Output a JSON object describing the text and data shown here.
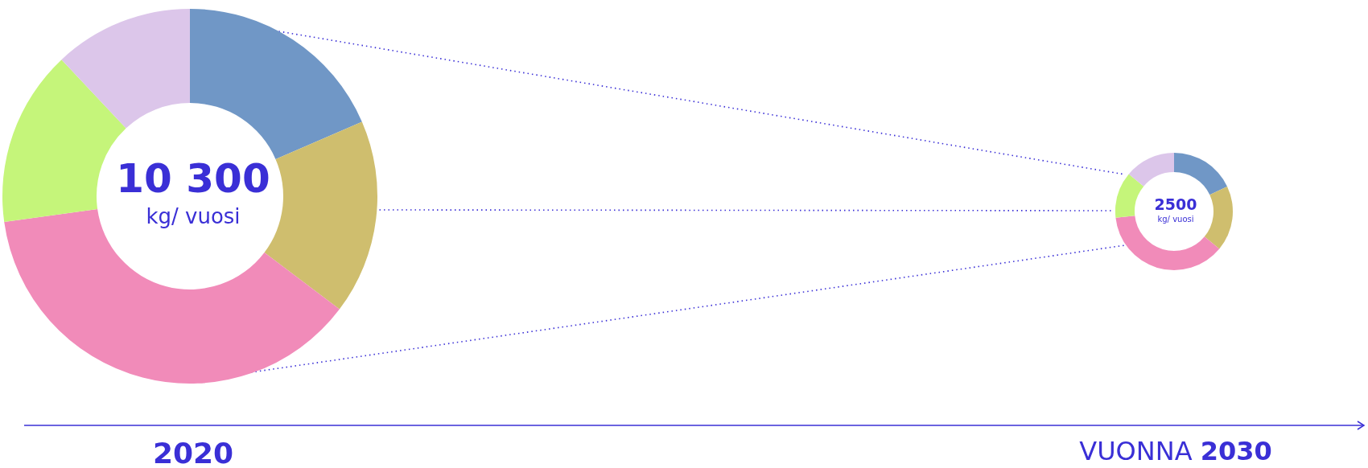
{
  "chart_data": [
    {
      "type": "donut",
      "title": "2020",
      "categories": [
        null,
        null,
        null,
        null,
        null
      ],
      "values": [
        18.5,
        16.8,
        37.5,
        15.2,
        12.0
      ],
      "colors": [
        "#7097c6",
        "#cfbe6e",
        "#f18bb9",
        "#c5f57a",
        "#dcc6ea"
      ],
      "annotations": [
        "10 300",
        "kg/ vuosi"
      ]
    },
    {
      "type": "donut",
      "title": "VUONNA 2030",
      "categories": [
        null,
        null,
        null,
        null,
        null
      ],
      "values": [
        18.0,
        18.0,
        37.3,
        12.7,
        14.0
      ],
      "colors": [
        "#7097c6",
        "#cfbe6e",
        "#f18bb9",
        "#c5f57a",
        "#dcc6ea"
      ],
      "annotations": [
        "2500",
        "kg/ vuosi"
      ]
    }
  ]
}
